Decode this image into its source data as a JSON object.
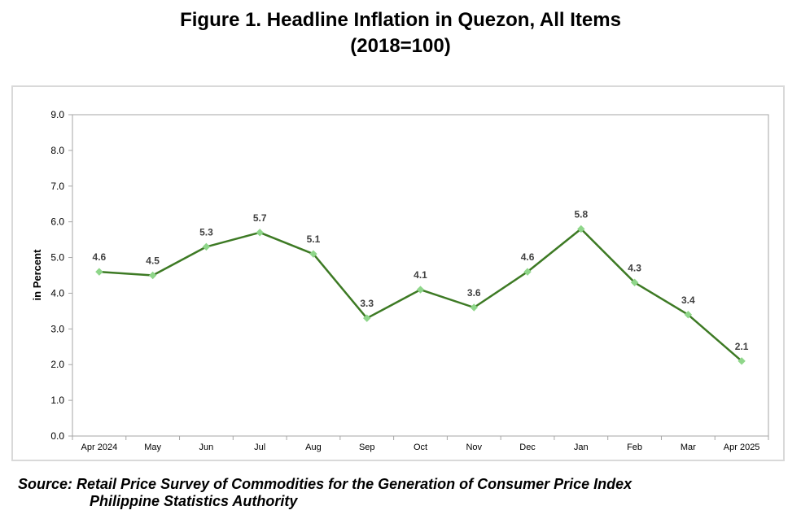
{
  "title_line1": "Figure 1. Headline Inflation in Quezon, All Items",
  "title_line2": "(2018=100)",
  "source_line1": "Source: Retail Price Survey of Commodities for the Generation of Consumer Price Index",
  "source_line2": "Philippine Statistics Authority",
  "chart_data": {
    "type": "line",
    "title": "Figure 1. Headline Inflation in Quezon, All Items (2018=100)",
    "xlabel": "",
    "ylabel": "in Percent",
    "ylim": [
      0,
      9
    ],
    "yticks": [
      "0.0",
      "1.0",
      "2.0",
      "3.0",
      "4.0",
      "5.0",
      "6.0",
      "7.0",
      "8.0",
      "9.0"
    ],
    "grid": false,
    "legend": "none",
    "categories": [
      "Apr 2024",
      "May",
      "Jun",
      "Jul",
      "Aug",
      "Sep",
      "Oct",
      "Nov",
      "Dec",
      "Jan",
      "Feb",
      "Mar",
      "Apr 2025"
    ],
    "values": [
      4.6,
      4.5,
      5.3,
      5.7,
      5.1,
      3.3,
      4.1,
      3.6,
      4.6,
      5.8,
      4.3,
      3.4,
      2.1
    ],
    "data_labels": [
      "4.6",
      "4.5",
      "5.3",
      "5.7",
      "5.1",
      "3.3",
      "4.1",
      "3.6",
      "4.6",
      "5.8",
      "4.3",
      "3.4",
      "2.1"
    ],
    "line_color": "#3d7a24",
    "marker_color": "#8fd68a"
  }
}
